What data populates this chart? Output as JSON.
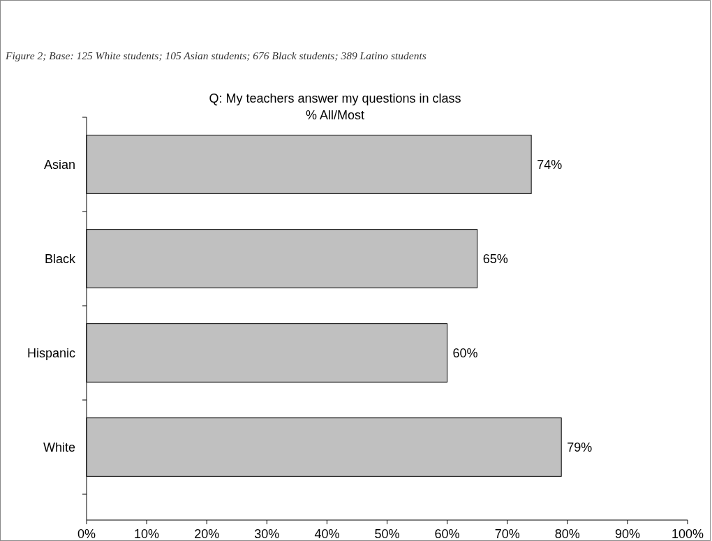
{
  "chart_data": {
    "type": "bar",
    "orientation": "horizontal",
    "subtitle": "Figure 2; Base: 125 White students; 105 Asian students; 676 Black students; 389 Latino students",
    "title": "Q: My teachers answer my questions in class\n% All/Most",
    "categories": [
      "Asian",
      "Black",
      "Hispanic",
      "White"
    ],
    "values": [
      74,
      65,
      60,
      79
    ],
    "color": "#c0c0c0",
    "value_labels": [
      "74%",
      "65%",
      "60%",
      "79%"
    ],
    "xlim": [
      0,
      100
    ],
    "xticks": [
      {
        "value": 0,
        "label": "0%"
      },
      {
        "value": 10,
        "label": "10%"
      },
      {
        "value": 20,
        "label": "20%"
      },
      {
        "value": 30,
        "label": "30%"
      },
      {
        "value": 40,
        "label": "40%"
      },
      {
        "value": 50,
        "label": "50%"
      },
      {
        "value": 60,
        "label": "60%"
      },
      {
        "value": 70,
        "label": "70%"
      },
      {
        "value": 80,
        "label": "80%"
      },
      {
        "value": 90,
        "label": "90%"
      },
      {
        "value": 100,
        "label": "100%"
      }
    ],
    "grid": false
  }
}
